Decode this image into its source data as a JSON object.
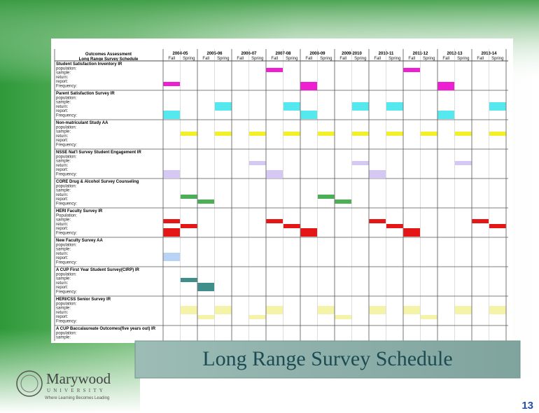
{
  "table": {
    "title": "Outcomes Assessment",
    "subtitle": "Long Range Survey Schedule",
    "years": [
      "2004-05",
      "2005-06",
      "2006-07",
      "2007-08",
      "2008-09",
      "2009-2010",
      "2010-11",
      "2011-12",
      "2012-13",
      "2013-14"
    ],
    "terms": [
      "Fall",
      "Spring"
    ],
    "sections": [
      {
        "name": "Student Satisfaction Inventory IR",
        "fields": [
          "population:",
          "sample:",
          "return:",
          "report:",
          "Frequency:"
        ]
      },
      {
        "name": "Parent Satisfaction Survey IR",
        "fields": [
          "population:",
          "sample:",
          "return:",
          "report:",
          "Frequency:"
        ]
      },
      {
        "name": "Non-matriculant Study AA",
        "fields": [
          "population:",
          "sample:",
          "return:",
          "report:",
          "Frequency:"
        ]
      },
      {
        "name": "NSSE Nat'l Survey Student Engagement IR",
        "fields": [
          "population:",
          "sample:",
          "return:",
          "report:",
          "Frequency:"
        ]
      },
      {
        "name": "CORE Drug & Alcohol Survey Counseling",
        "fields": [
          "population:",
          "sample:",
          "return:",
          "report:",
          "Frequency:"
        ]
      },
      {
        "name": "HERI Faculty Survey IR",
        "fields": [
          "Population:",
          "sample:",
          "return:",
          "report:",
          "Frequency:"
        ]
      },
      {
        "name": "New Faculty Survey AA",
        "fields": [
          "population:",
          "sample:",
          "return:",
          "report:",
          "Frequency:"
        ]
      },
      {
        "name": "A CUP First Year Student Survey(CIRP) IR",
        "fields": [
          "population:",
          "sample:",
          "return:",
          "report:",
          "Frequency:"
        ]
      },
      {
        "name": "HERI/CSS Senior Survey IR",
        "fields": [
          "population:",
          "sample:",
          "return:",
          "report:",
          "Frequency:"
        ]
      },
      {
        "name": "A CUP Baccalaureate Outcomes(five years out) IR",
        "fields": [
          "population:",
          "sample:"
        ]
      }
    ]
  },
  "caption": "Long Range Survey Schedule",
  "logo": {
    "name": "Marywood",
    "sub": "UNIVERSITY",
    "tagline": "Where Learning Becomes Leading"
  },
  "page_number": "13"
}
